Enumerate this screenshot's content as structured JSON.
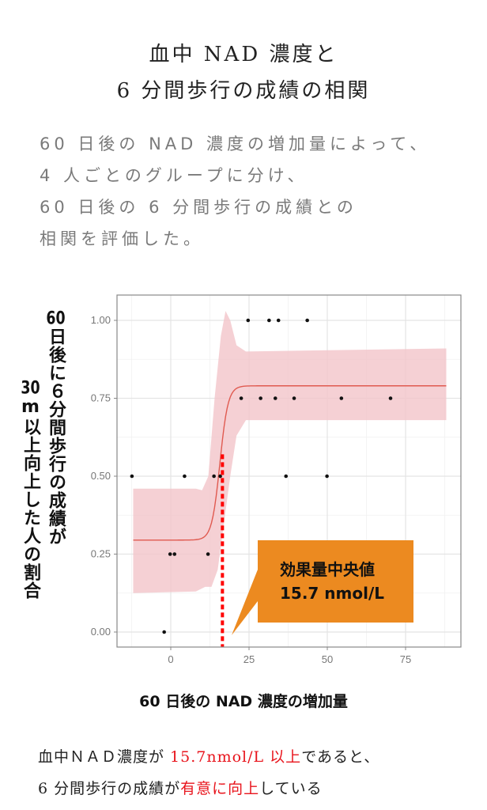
{
  "title": {
    "line1": "血中 NAD 濃度と",
    "line2": "6 分間歩行の成績の相関"
  },
  "description": [
    "60 日後の NAD 濃度の増加量によって、",
    "4 人ごとのグループに分け、",
    "60 日後の 6 分間歩行の成績との",
    "相関を評価した。"
  ],
  "y_label": {
    "col1_num": "60",
    "col1_rest": "日後に６分間歩行の成績が",
    "col2_num": "30",
    "col2_rest": "m以上向上した人の割合"
  },
  "x_label": "60 日後の NAD 濃度の増加量",
  "callout": {
    "line1": "効果量中央値",
    "line2": "15.7 nmol/L"
  },
  "conclusion": {
    "line1_a": "血中ＮＡＤ濃度が ",
    "line1_red": "15.7nmol/L 以上",
    "line1_b": "であると、",
    "line2_a": "6 分間歩行の成績が",
    "line2_red": "有意に向上",
    "line2_b": "している"
  },
  "chart_data": {
    "type": "scatter",
    "xlim": [
      -15,
      90
    ],
    "ylim": [
      -0.05,
      1.07
    ],
    "x_ticks": [
      0,
      25,
      50,
      75
    ],
    "x_tick_labels": [
      "0",
      "25",
      "50",
      "75"
    ],
    "y_ticks": [
      0,
      0.25,
      0.5,
      0.75,
      1.0
    ],
    "y_tick_labels": [
      "0.00",
      "0.25",
      "0.50",
      "0.75",
      "1.00"
    ],
    "grid": true,
    "points": [
      [
        24.7,
        1
      ],
      [
        31.4,
        1
      ],
      [
        34.4,
        1
      ],
      [
        43.6,
        1
      ],
      [
        22.5,
        0.75
      ],
      [
        28.7,
        0.75
      ],
      [
        33.4,
        0.75
      ],
      [
        39.4,
        0.75
      ],
      [
        54.5,
        0.75
      ],
      [
        70.2,
        0.75
      ],
      [
        -12.4,
        0.5
      ],
      [
        4.4,
        0.5
      ],
      [
        13.8,
        0.5
      ],
      [
        15.8,
        0.5
      ],
      [
        36.8,
        0.5
      ],
      [
        49.9,
        0.5
      ],
      [
        -0.2,
        0.25
      ],
      [
        1.2,
        0.25
      ],
      [
        11.9,
        0.25
      ],
      [
        -2.1,
        0
      ]
    ],
    "fit": {
      "lower": 0.295,
      "upper": 0.79,
      "midpoint": 15.7,
      "range": [
        -12,
        88
      ]
    },
    "ribbon_upper": [
      [
        -12,
        0.46
      ],
      [
        8,
        0.46
      ],
      [
        10,
        0.455
      ],
      [
        12,
        0.5
      ],
      [
        14,
        0.75
      ],
      [
        16,
        0.95
      ],
      [
        17.5,
        1.03
      ],
      [
        19,
        1.0
      ],
      [
        21,
        0.92
      ],
      [
        24,
        0.9
      ],
      [
        88,
        0.91
      ]
    ],
    "ribbon_lower": [
      [
        -12,
        0.125
      ],
      [
        8,
        0.13
      ],
      [
        11,
        0.145
      ],
      [
        13,
        0.145
      ],
      [
        15,
        0.2
      ],
      [
        17,
        0.35
      ],
      [
        19,
        0.5
      ],
      [
        21,
        0.63
      ],
      [
        24,
        0.68
      ],
      [
        88,
        0.68
      ]
    ],
    "threshold_x": 16.5,
    "colors": {
      "fit": "#e05a50",
      "ribbon": "#f2c4c9",
      "threshold": "#ff0000",
      "callout": "#ec8a20",
      "accent": "#e8141c"
    }
  }
}
